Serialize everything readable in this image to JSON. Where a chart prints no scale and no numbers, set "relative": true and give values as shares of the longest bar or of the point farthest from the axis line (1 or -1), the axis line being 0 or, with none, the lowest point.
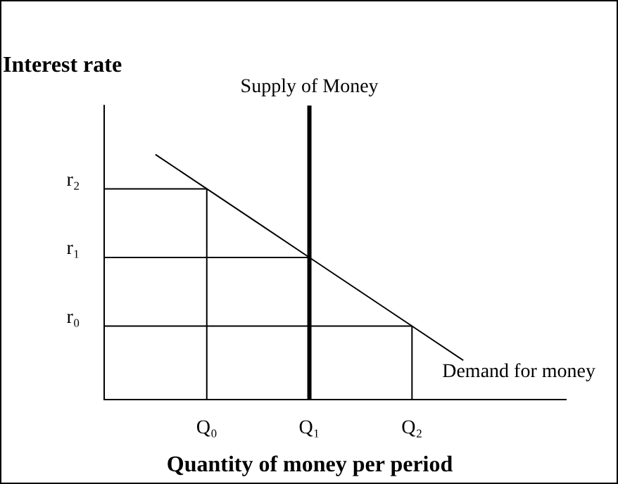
{
  "chart_data": {
    "type": "line",
    "xlabel": "Quantity of money per period",
    "ylabel": "Interest rate",
    "relative": true,
    "categories": [
      null,
      null,
      "Q₀",
      null,
      "Q₁",
      null,
      "Q₂",
      null,
      null,
      null
    ],
    "series": [
      {
        "name": "Demand for money",
        "color": "#000000",
        "values": [
          null,
          1,
          0.86,
          0.72,
          0.58,
          0.44,
          0.3,
          0.16,
          null,
          null
        ]
      }
    ],
    "ref_lines": [
      {
        "axis": "x",
        "value": "Q₁",
        "label": "Supply of Money",
        "color": "#000000"
      },
      {
        "axis": "y",
        "value": 0.86,
        "label": "r₂",
        "color": "#000000"
      },
      {
        "axis": "y",
        "value": 0.58,
        "label": "r₁",
        "color": "#000000"
      },
      {
        "axis": "y",
        "value": 0.3,
        "label": "r₀",
        "color": "#000000"
      },
      {
        "axis": "x",
        "value": "Q₀",
        "color": "#000000"
      },
      {
        "axis": "x",
        "value": "Q₂",
        "color": "#000000"
      }
    ],
    "grid": false,
    "legend": false,
    "marker": "none",
    "line_style": "solid"
  }
}
